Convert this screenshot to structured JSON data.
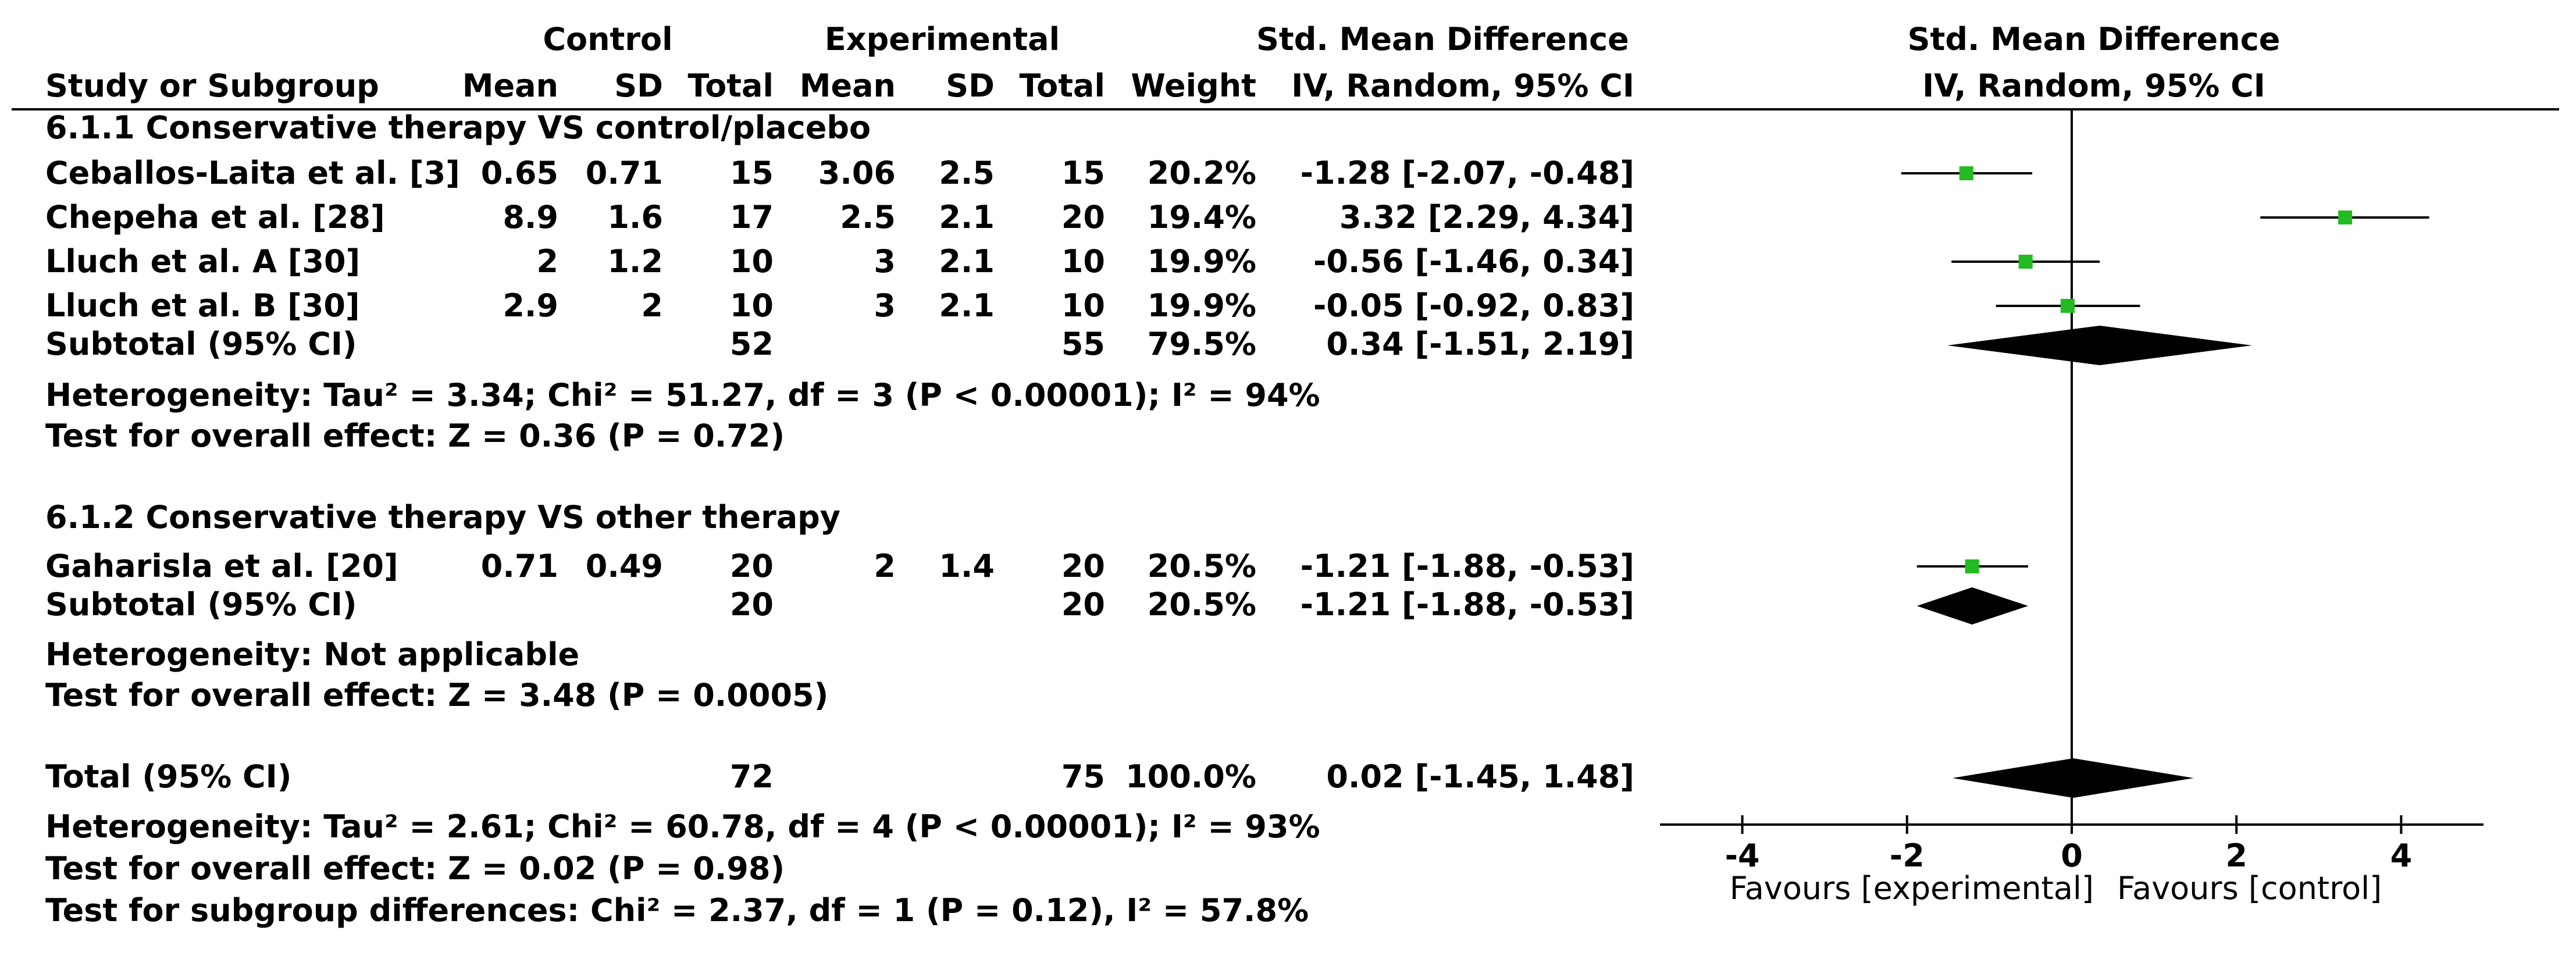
{
  "headers": {
    "control_group": "Control",
    "experimental_group": "Experimental",
    "smd_top": "Std. Mean Difference",
    "smd_sub": "IV, Random, 95% CI",
    "plot_top": "Std. Mean Difference",
    "plot_sub": "IV, Random, 95% CI",
    "study": "Study or Subgroup",
    "mean_c": "Mean",
    "sd_c": "SD",
    "total_c": "Total",
    "mean_e": "Mean",
    "sd_e": "SD",
    "total_e": "Total",
    "weight": "Weight"
  },
  "subgroups": [
    {
      "title": "6.1.1 Conservative therapy VS control/placebo",
      "studies": [
        {
          "name": "Ceballos-Laita et al. [3]",
          "mean_c": "0.65",
          "sd_c": "0.71",
          "total_c": "15",
          "mean_e": "3.06",
          "sd_e": "2.5",
          "total_e": "15",
          "weight": "20.2%",
          "ci_text": "-1.28 [-2.07, -0.48]"
        },
        {
          "name": "Chepeha et al. [28]",
          "mean_c": "8.9",
          "sd_c": "1.6",
          "total_c": "17",
          "mean_e": "2.5",
          "sd_e": "2.1",
          "total_e": "20",
          "weight": "19.4%",
          "ci_text": "3.32 [2.29, 4.34]"
        },
        {
          "name": "Lluch et al. A [30]",
          "mean_c": "2",
          "sd_c": "1.2",
          "total_c": "10",
          "mean_e": "3",
          "sd_e": "2.1",
          "total_e": "10",
          "weight": "19.9%",
          "ci_text": "-0.56 [-1.46, 0.34]"
        },
        {
          "name": "Lluch et al. B [30]",
          "mean_c": "2.9",
          "sd_c": "2",
          "total_c": "10",
          "mean_e": "3",
          "sd_e": "2.1",
          "total_e": "10",
          "weight": "19.9%",
          "ci_text": "-0.05 [-0.92, 0.83]"
        }
      ],
      "subtotal": {
        "label": "Subtotal (95% CI)",
        "total_c": "52",
        "total_e": "55",
        "weight": "79.5%",
        "ci_text": "0.34 [-1.51, 2.19]"
      },
      "heterogeneity": "Heterogeneity: Tau² = 3.34; Chi² = 51.27, df = 3 (P < 0.00001); I² = 94%",
      "overall": "Test for overall effect: Z = 0.36 (P = 0.72)"
    },
    {
      "title": "6.1.2 Conservative therapy VS other therapy",
      "studies": [
        {
          "name": "Gaharisla et al. [20]",
          "mean_c": "0.71",
          "sd_c": "0.49",
          "total_c": "20",
          "mean_e": "2",
          "sd_e": "1.4",
          "total_e": "20",
          "weight": "20.5%",
          "ci_text": "-1.21 [-1.88, -0.53]"
        }
      ],
      "subtotal": {
        "label": "Subtotal (95% CI)",
        "total_c": "20",
        "total_e": "20",
        "weight": "20.5%",
        "ci_text": "-1.21 [-1.88, -0.53]"
      },
      "heterogeneity": "Heterogeneity: Not applicable",
      "overall": "Test for overall effect: Z = 3.48 (P = 0.0005)"
    }
  ],
  "total": {
    "label": "Total (95% CI)",
    "total_c": "72",
    "total_e": "75",
    "weight": "100.0%",
    "ci_text": "0.02 [-1.45, 1.48]",
    "heterogeneity": "Heterogeneity: Tau² = 2.61; Chi² = 60.78, df = 4 (P < 0.00001); I² = 93%",
    "overall": "Test for overall effect: Z = 0.02 (P = 0.98)",
    "subgroup_diff": "Test for subgroup differences: Chi² = 2.37, df = 1 (P = 0.12), I² = 57.8%"
  },
  "axis": {
    "favours_left": "Favours [experimental]",
    "favours_right": "Favours [control]"
  },
  "chart_data": {
    "type": "forest",
    "xlim": [
      -5,
      5
    ],
    "xticks": [
      -4,
      -2,
      0,
      2,
      4
    ],
    "xtick_labels": [
      "-4",
      "-2",
      "0",
      "2",
      "4"
    ],
    "study_color": "#22bb22",
    "diamond_color": "#000000",
    "studies": [
      {
        "name": "Ceballos-Laita et al. [3]",
        "est": -1.28,
        "lo": -2.07,
        "hi": -0.48
      },
      {
        "name": "Chepeha et al. [28]",
        "est": 3.32,
        "lo": 2.29,
        "hi": 4.34
      },
      {
        "name": "Lluch et al. A [30]",
        "est": -0.56,
        "lo": -1.46,
        "hi": 0.34
      },
      {
        "name": "Lluch et al. B [30]",
        "est": -0.05,
        "lo": -0.92,
        "hi": 0.83
      },
      {
        "name": "Gaharisla et al. [20]",
        "est": -1.21,
        "lo": -1.88,
        "hi": -0.53
      }
    ],
    "diamonds": [
      {
        "name": "Subtotal 6.1.1",
        "est": 0.34,
        "lo": -1.51,
        "hi": 2.19
      },
      {
        "name": "Subtotal 6.1.2",
        "est": -1.21,
        "lo": -1.88,
        "hi": -0.53
      },
      {
        "name": "Total",
        "est": 0.02,
        "lo": -1.45,
        "hi": 1.48
      }
    ]
  }
}
